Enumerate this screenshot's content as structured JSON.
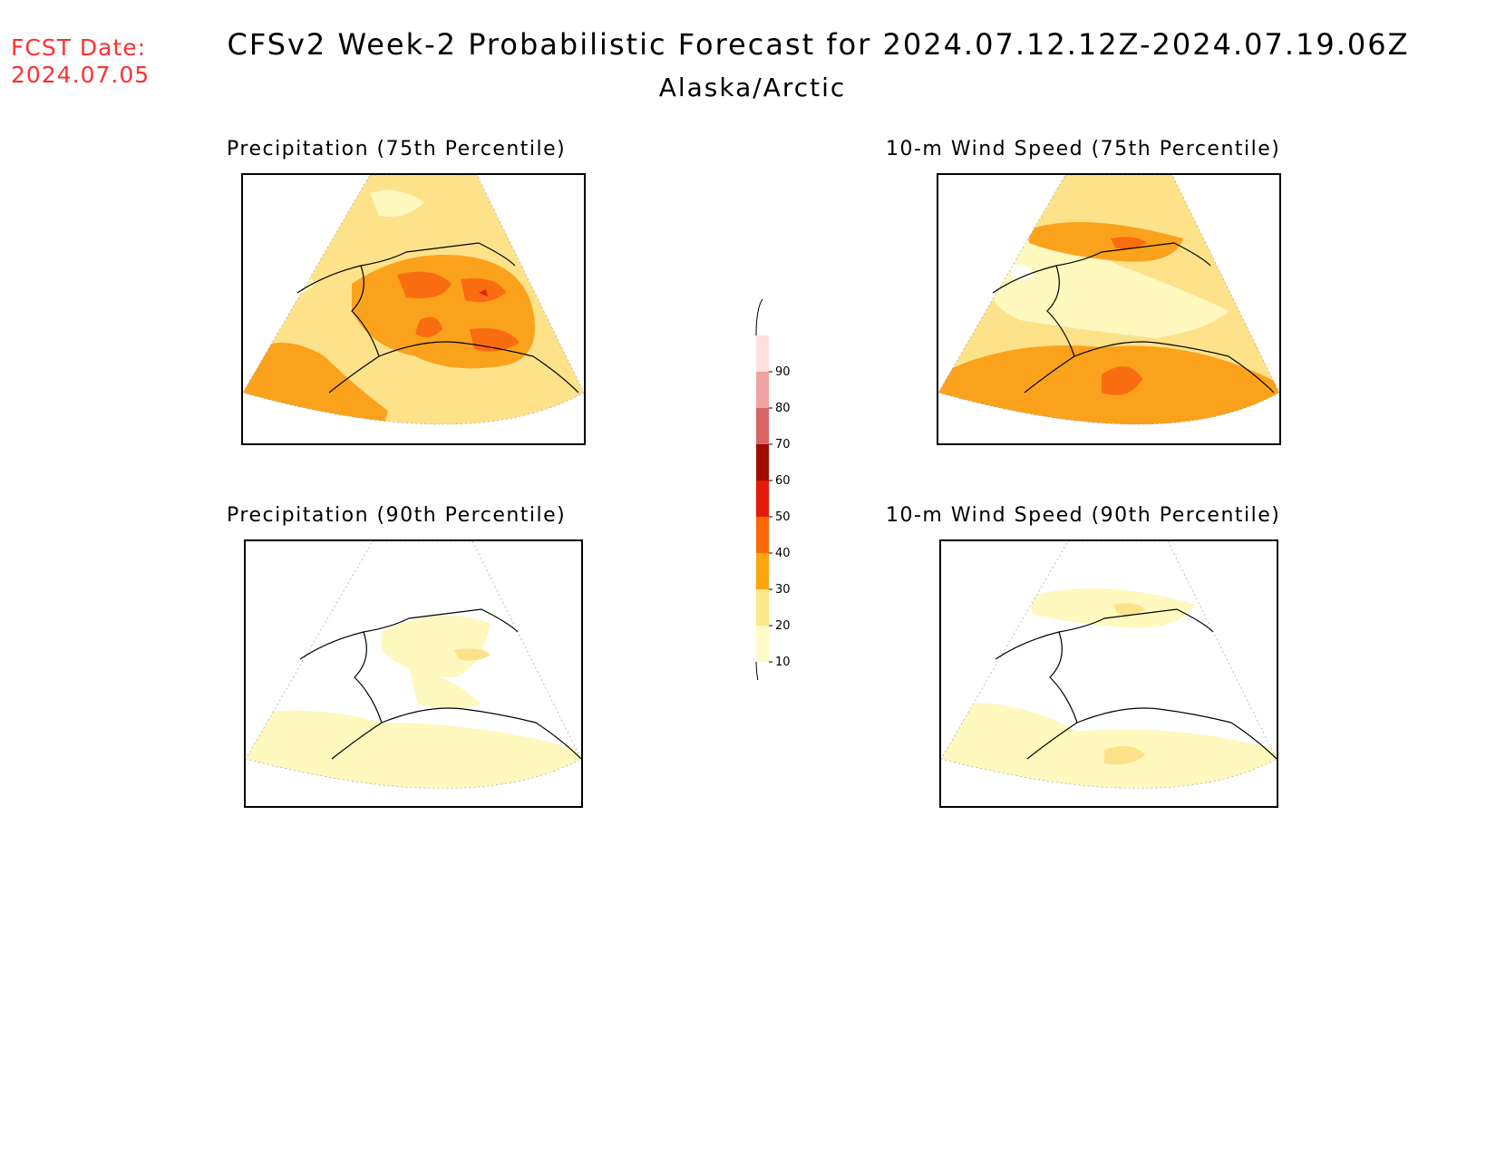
{
  "header": {
    "fcst_label": "FCST Date:",
    "fcst_date": "2024.07.05",
    "title": "CFSv2 Week-2 Probabilistic Forecast for 2024.07.12.12Z-2024.07.19.06Z",
    "subtitle": "Alaska/Arctic"
  },
  "panels": [
    {
      "title": "Precipitation (75th Percentile)"
    },
    {
      "title": "10-m Wind Speed (75th Percentile)"
    },
    {
      "title": "Precipitation (90th Percentile)"
    },
    {
      "title": "10-m Wind Speed (90th Percentile)"
    }
  ],
  "colorbar": {
    "levels": [
      "10",
      "20",
      "30",
      "40",
      "50",
      "60",
      "70",
      "80",
      "90"
    ],
    "colors": [
      "#fffbc6",
      "#fee68a",
      "#fca50f",
      "#fd6a05",
      "#e21a07",
      "#a10c03",
      "#d76565",
      "#f0a3a3",
      "#fde0e0"
    ]
  },
  "colors": {
    "fcst": "#ff3030",
    "c10": "#fff8bf",
    "c20": "#fde28a",
    "c30": "#fba21c",
    "c40": "#fa6c10",
    "c50": "#e0220b"
  }
}
